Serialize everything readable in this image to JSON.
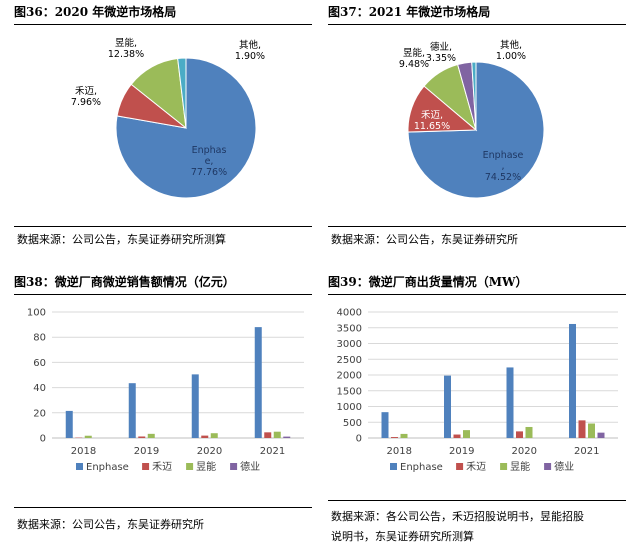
{
  "colors": {
    "Enphase": "#4f81bd",
    "禾迈": "#c0504d",
    "昱能": "#9bbb59",
    "德业": "#8064a2",
    "其他": "#4bacc6"
  },
  "panels": [
    {
      "title": "图36：2020 年微逆市场格局",
      "source": "数据来源：公司公告，东吴证券研究所测算"
    },
    {
      "title": "图37：2021 年微逆市场格局",
      "source": "数据来源：公司公告，东吴证券研究所"
    },
    {
      "title": "图38：微逆厂商微逆销售额情况（亿元）",
      "source": "数据来源：公司公告，东吴证券研究所"
    },
    {
      "title": "图39：微逆厂商出货量情况（MW）",
      "source_lines": [
        "数据来源：各公司公告，禾迈招股说明书，昱能招股",
        "说明书，东吴证券研究所测算"
      ]
    }
  ],
  "chart_data": [
    {
      "type": "pie",
      "title": "2020 年微逆市场格局",
      "slices": [
        {
          "name": "Enphase",
          "value": 77.76,
          "label_lines": [
            "Enphas",
            "e,",
            "77.76%"
          ]
        },
        {
          "name": "禾迈",
          "value": 7.96,
          "label_lines": [
            "禾迈,",
            "7.96%"
          ]
        },
        {
          "name": "昱能",
          "value": 12.38,
          "label_lines": [
            "昱能,",
            "12.38%"
          ]
        },
        {
          "name": "其他",
          "value": 1.9,
          "label_lines": [
            "其他,",
            "1.90%"
          ]
        }
      ]
    },
    {
      "type": "pie",
      "title": "2021 年微逆市场格局",
      "slices": [
        {
          "name": "Enphase",
          "value": 74.52,
          "label_lines": [
            "Enphase",
            ",",
            "74.52%"
          ]
        },
        {
          "name": "禾迈",
          "value": 11.65,
          "label_lines": [
            "禾迈,",
            "11.65%"
          ]
        },
        {
          "name": "昱能",
          "value": 9.48,
          "label_lines": [
            "昱能,",
            "9.48%"
          ]
        },
        {
          "name": "德业",
          "value": 3.35,
          "label_lines": [
            "德业,",
            "3.35%"
          ]
        },
        {
          "name": "其他",
          "value": 1.0,
          "label_lines": [
            "其他,",
            "1.00%"
          ]
        }
      ]
    },
    {
      "type": "bar",
      "title": "微逆厂商微逆销售额情况（亿元）",
      "categories": [
        "2018",
        "2019",
        "2020",
        "2021"
      ],
      "ylim": [
        0,
        100
      ],
      "yticks": [
        0,
        20,
        40,
        60,
        80,
        100
      ],
      "series": [
        {
          "name": "Enphase",
          "values": [
            21.5,
            43.5,
            50.5,
            88
          ]
        },
        {
          "name": "禾迈",
          "values": [
            0.3,
            1.2,
            1.9,
            4.5
          ]
        },
        {
          "name": "昱能",
          "values": [
            1.8,
            3.3,
            3.8,
            5
          ]
        },
        {
          "name": "德业",
          "values": [
            0,
            0,
            0,
            1.1
          ]
        }
      ],
      "legend": "bottom"
    },
    {
      "type": "bar",
      "title": "微逆厂商出货量情况（MW）",
      "categories": [
        "2018",
        "2019",
        "2020",
        "2021"
      ],
      "ylim": [
        0,
        4000
      ],
      "yticks": [
        0,
        500,
        1000,
        1500,
        2000,
        2500,
        3000,
        3500,
        4000
      ],
      "series": [
        {
          "name": "Enphase",
          "values": [
            820,
            1980,
            2240,
            3620
          ]
        },
        {
          "name": "禾迈",
          "values": [
            30,
            110,
            210,
            560
          ]
        },
        {
          "name": "昱能",
          "values": [
            130,
            250,
            350,
            460
          ]
        },
        {
          "name": "德业",
          "values": [
            0,
            0,
            0,
            170
          ]
        }
      ],
      "legend": "bottom"
    }
  ]
}
